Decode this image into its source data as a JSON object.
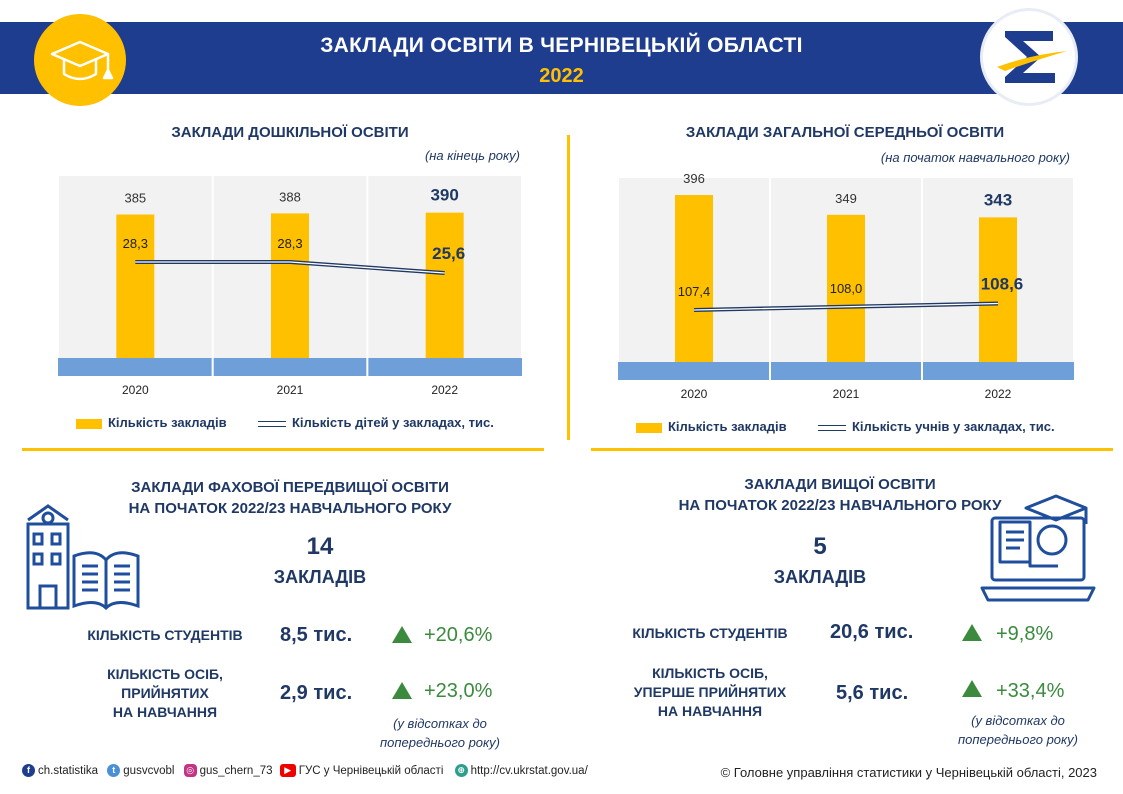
{
  "header": {
    "title": "ЗАКЛАДИ ОСВІТИ В ЧЕРНІВЕЦЬКІЙ ОБЛАСТІ",
    "year": "2022"
  },
  "icons": {
    "left": "graduation-cap-icon",
    "right": "sigma-logo"
  },
  "colors": {
    "navy": "#1f3d8f",
    "yellow": "#ffc000",
    "green": "#3b8a3e",
    "axis_band": "#6f9fd8"
  },
  "chart_data": [
    {
      "type": "bar",
      "title": "ЗАКЛАДИ ДОШКІЛЬНОЇ ОСВІТИ",
      "subtitle": "(на кінець року)",
      "categories": [
        "2020",
        "2021",
        "2022"
      ],
      "series": [
        {
          "name": "Кількість закладів",
          "type": "bar",
          "values": [
            385,
            388,
            390
          ],
          "labels": [
            "385",
            "388",
            "390"
          ]
        },
        {
          "name": "Кількість дітей у закладах, тис.",
          "type": "line",
          "values": [
            28.3,
            28.3,
            25.6
          ],
          "labels": [
            "28,3",
            "28,3",
            "25,6"
          ]
        }
      ]
    },
    {
      "type": "bar",
      "title": "ЗАКЛАДИ ЗАГАЛЬНОЇ СЕРЕДНЬОЇ ОСВІТИ",
      "subtitle": "(на початок навчального року)",
      "categories": [
        "2020",
        "2021",
        "2022"
      ],
      "series": [
        {
          "name": "Кількість закладів",
          "type": "bar",
          "values": [
            396,
            349,
            343
          ],
          "labels": [
            "396",
            "349",
            "343"
          ]
        },
        {
          "name": "Кількість учнів у закладах, тис.",
          "type": "line",
          "values": [
            107.4,
            108.0,
            108.6
          ],
          "labels": [
            "107,4",
            "108,0",
            "108,6"
          ]
        }
      ]
    }
  ],
  "vocational": {
    "title_line1": "ЗАКЛАДИ ФАХОВОЇ ПЕРЕДВИЩОЇ  ОСВІТИ",
    "title_line2": "НА ПОЧАТОК 2022/23 НАВЧАЛЬНОГО РОКУ",
    "count": "14",
    "count_unit": "ЗАКЛАДІВ",
    "students_label": "КІЛЬКІСТЬ СТУДЕНТІВ",
    "students_value": "8,5 тис.",
    "students_change": "+20,6%",
    "admitted_label_1": "КІЛЬКІСТЬ ОСІБ,",
    "admitted_label_2": "ПРИЙНЯТИХ",
    "admitted_label_3": "НА НАВЧАННЯ",
    "admitted_value": "2,9 тис.",
    "admitted_change": "+23,0%",
    "note_1": "(у відсотках до",
    "note_2": "попереднього року)"
  },
  "higher": {
    "title_line1": "ЗАКЛАДИ ВИЩОЇ  ОСВІТИ",
    "title_line2": "НА ПОЧАТОК 2022/23 НАВЧАЛЬНОГО РОКУ",
    "count": "5",
    "count_unit": "ЗАКЛАДІВ",
    "students_label": "КІЛЬКІСТЬ СТУДЕНТІВ",
    "students_value": "20,6 тис.",
    "students_change": "+9,8%",
    "admitted_label_1": "КІЛЬКІСТЬ ОСІБ,",
    "admitted_label_2": "УПЕРШЕ ПРИЙНЯТИХ",
    "admitted_label_3": "НА НАВЧАННЯ",
    "admitted_value": "5,6 тис.",
    "admitted_change": "+33,4%",
    "note_1": "(у відсотках до",
    "note_2": "попереднього року)"
  },
  "footer": {
    "facebook": "ch.statistika",
    "twitter": "gusvcvobl",
    "instagram": "gus_chern_73",
    "youtube": "ГУС у Чернівецькій області",
    "web": "http://cv.ukrstat.gov.ua/",
    "copyright": "© Головне управління статистики у Чернівецькій області, 2023"
  }
}
